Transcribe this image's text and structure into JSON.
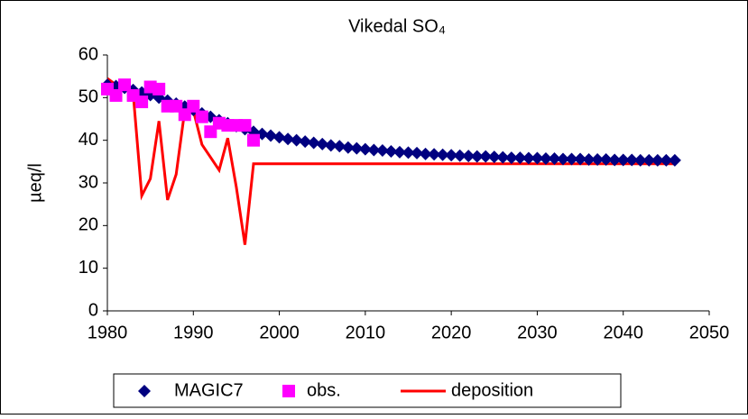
{
  "chart_data": {
    "type": "line",
    "title": "Vikedal SO₄",
    "y_label": "µeq/l",
    "xlim": [
      1980,
      2050
    ],
    "xticks": [
      1980,
      1990,
      2000,
      2010,
      2020,
      2030,
      2040,
      2050
    ],
    "ylim": [
      0,
      60
    ],
    "yticks": [
      0,
      10,
      20,
      30,
      40,
      50,
      60
    ],
    "grid": false,
    "legend": "bottom",
    "series": [
      {
        "name": "MAGIC7",
        "color": "#000080",
        "marker": "diamond",
        "x": [
          1980,
          1981,
          1982,
          1983,
          1984,
          1985,
          1986,
          1987,
          1988,
          1989,
          1990,
          1991,
          1992,
          1993,
          1994,
          1995,
          1996,
          1997,
          1998,
          1999,
          2000,
          2001,
          2002,
          2003,
          2004,
          2005,
          2006,
          2007,
          2008,
          2009,
          2010,
          2011,
          2012,
          2013,
          2014,
          2015,
          2016,
          2017,
          2018,
          2019,
          2020,
          2021,
          2022,
          2023,
          2024,
          2025,
          2026,
          2027,
          2028,
          2029,
          2030,
          2031,
          2032,
          2033,
          2034,
          2035,
          2036,
          2037,
          2038,
          2039,
          2040,
          2041,
          2042,
          2043,
          2044,
          2045,
          2046
        ],
        "values": [
          53,
          52.7,
          52.3,
          51.8,
          51.2,
          50.6,
          50,
          49.3,
          48.6,
          47.9,
          47.1,
          46.3,
          45.5,
          44.7,
          44,
          43.3,
          42.6,
          42,
          41.5,
          41.1,
          40.7,
          40.3,
          40.0,
          39.7,
          39.4,
          39.1,
          38.8,
          38.6,
          38.3,
          38.1,
          37.9,
          37.7,
          37.6,
          37.4,
          37.2,
          37.1,
          37.0,
          36.8,
          36.7,
          36.6,
          36.5,
          36.4,
          36.3,
          36.2,
          36.2,
          36.1,
          36.0,
          35.9,
          35.9,
          35.8,
          35.8,
          35.7,
          35.7,
          35.6,
          35.6,
          35.6,
          35.5,
          35.5,
          35.5,
          35.4,
          35.4,
          35.4,
          35.3,
          35.3,
          35.3,
          35.3,
          35.3
        ]
      },
      {
        "name": "obs.",
        "color": "#ff00ff",
        "marker": "square",
        "x": [
          1980,
          1981,
          1982,
          1983,
          1984,
          1985,
          1986,
          1987,
          1988,
          1989,
          1990,
          1991,
          1992,
          1993,
          1994,
          1995,
          1996,
          1997
        ],
        "values": [
          52,
          50.5,
          53,
          50.5,
          49,
          52.5,
          52,
          48,
          48,
          46,
          48,
          45.5,
          42,
          44,
          43.5,
          43.5,
          43.5,
          40
        ]
      },
      {
        "name": "deposition",
        "color": "#ff0000",
        "marker": "none",
        "x": [
          1980,
          1981,
          1982,
          1983,
          1984,
          1985,
          1986,
          1987,
          1988,
          1989,
          1990,
          1991,
          1992,
          1993,
          1994,
          1995,
          1996,
          1997,
          2046
        ],
        "values": [
          54.5,
          53,
          52.5,
          51,
          27,
          31,
          44.5,
          26,
          32,
          47,
          47,
          39,
          36,
          33,
          40.5,
          29,
          15.5,
          34.5,
          34.5
        ]
      }
    ]
  }
}
